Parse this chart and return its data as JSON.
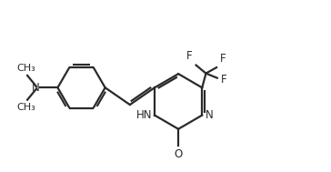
{
  "bg_color": "#ffffff",
  "line_color": "#2a2a2a",
  "line_width": 1.6,
  "font_size": 8.5,
  "figsize": [
    3.64,
    1.89
  ],
  "dpi": 100,
  "xlim": [
    0,
    10
  ],
  "ylim": [
    0,
    5.2
  ]
}
